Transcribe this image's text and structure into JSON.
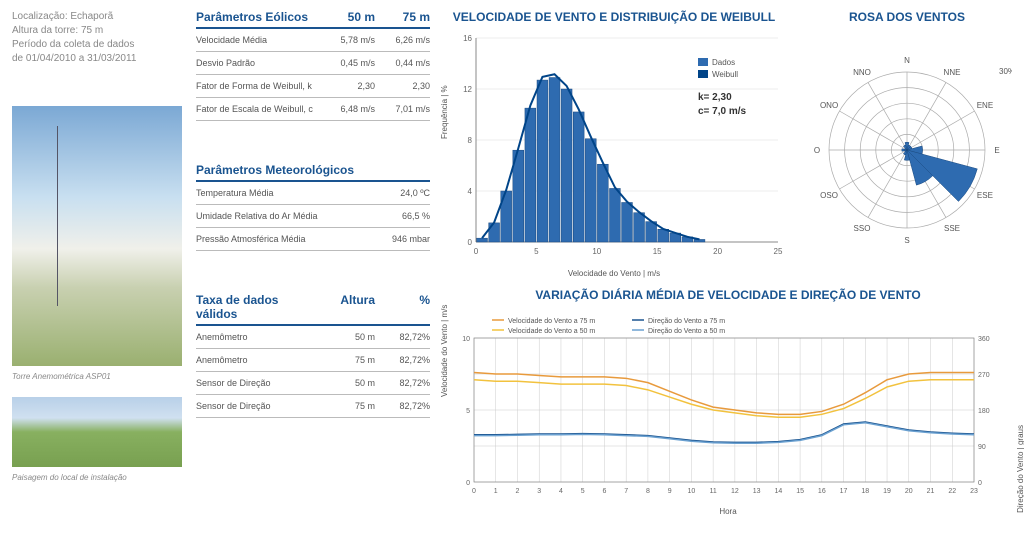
{
  "meta": {
    "loc_label": "Localização:",
    "loc_value": "Echaporã",
    "tower_label": "Altura da torre:",
    "tower_value": "75 m",
    "period_label": "Período da coleta de dados",
    "period_value": "de 01/04/2010 a 31/03/2011"
  },
  "photos": {
    "caption1": "Torre Anemométrica ASP01",
    "caption2": "Paisagem do local de instalação"
  },
  "tables": {
    "eolic": {
      "title": "Parâmetros Eólicos",
      "head1": "50 m",
      "head2": "75 m",
      "rows": [
        {
          "label": "Velocidade Média",
          "v1": "5,78 m/s",
          "v2": "6,26 m/s"
        },
        {
          "label": "Desvio Padrão",
          "v1": "0,45 m/s",
          "v2": "0,44 m/s"
        },
        {
          "label": "Fator de Forma de Weibull, k",
          "v1": "2,30",
          "v2": "2,30"
        },
        {
          "label": "Fator de Escala de Weibull, c",
          "v1": "6,48 m/s",
          "v2": "7,01 m/s"
        }
      ]
    },
    "meteo": {
      "title": "Parâmetros Meteorológicos",
      "rows": [
        {
          "label": "Temperatura Média",
          "v": "24,0 ºC"
        },
        {
          "label": "Umidade Relativa do Ar Média",
          "v": "66,5 %"
        },
        {
          "label": "Pressão Atmosférica Média",
          "v": "946 mbar"
        }
      ]
    },
    "valid": {
      "title": "Taxa de dados válidos",
      "head1": "Altura",
      "head2": "%",
      "rows": [
        {
          "label": "Anemômetro",
          "v1": "50 m",
          "v2": "82,72%"
        },
        {
          "label": "Anemômetro",
          "v1": "75 m",
          "v2": "82,72%"
        },
        {
          "label": "Sensor de Direção",
          "v1": "50 m",
          "v2": "82,72%"
        },
        {
          "label": "Sensor de Direção",
          "v1": "75 m",
          "v2": "82,72%"
        }
      ]
    }
  },
  "weibull": {
    "title": "VELOCIDADE DE VENTO E DISTRIBUIÇÃO DE WEIBULL",
    "xlabel": "Velocidade do Vento | m/s",
    "ylabel": "Frequência | %",
    "legend_data": "Dados",
    "legend_curve": "Weibull",
    "params": {
      "k_label": "k= 2,30",
      "c_label": "c= 7,0 m/s"
    },
    "xticks": [
      0,
      5,
      10,
      15,
      20,
      25
    ],
    "yticks": [
      0,
      4,
      8,
      12,
      16
    ],
    "ylim": 16,
    "xlim": 25,
    "bar_color": "#2e6bb0",
    "curve_color": "#004488",
    "bars": [
      {
        "x": 0.5,
        "y": 0.3
      },
      {
        "x": 1.5,
        "y": 1.5
      },
      {
        "x": 2.5,
        "y": 4.0
      },
      {
        "x": 3.5,
        "y": 7.2
      },
      {
        "x": 4.5,
        "y": 10.5
      },
      {
        "x": 5.5,
        "y": 12.7
      },
      {
        "x": 6.5,
        "y": 12.9
      },
      {
        "x": 7.5,
        "y": 12.0
      },
      {
        "x": 8.5,
        "y": 10.2
      },
      {
        "x": 9.5,
        "y": 8.1
      },
      {
        "x": 10.5,
        "y": 6.1
      },
      {
        "x": 11.5,
        "y": 4.2
      },
      {
        "x": 12.5,
        "y": 3.1
      },
      {
        "x": 13.5,
        "y": 2.3
      },
      {
        "x": 14.5,
        "y": 1.6
      },
      {
        "x": 15.5,
        "y": 1.0
      },
      {
        "x": 16.5,
        "y": 0.7
      },
      {
        "x": 17.5,
        "y": 0.4
      },
      {
        "x": 18.5,
        "y": 0.2
      }
    ]
  },
  "rose": {
    "title": "ROSA DOS VENTOS",
    "max_label": "30%",
    "directions": [
      "N",
      "NNE",
      "ENE",
      "E",
      "ESE",
      "SSE",
      "S",
      "SSO",
      "OSO",
      "O",
      "ONO",
      "NNO"
    ],
    "sector_color": "#2e6bb0",
    "rings": 5,
    "max_pct": 30,
    "sectors": [
      {
        "dir": 0,
        "pct": 3
      },
      {
        "dir": 30,
        "pct": 2
      },
      {
        "dir": 60,
        "pct": 2
      },
      {
        "dir": 90,
        "pct": 6
      },
      {
        "dir": 120,
        "pct": 28
      },
      {
        "dir": 150,
        "pct": 14
      },
      {
        "dir": 180,
        "pct": 4
      },
      {
        "dir": 210,
        "pct": 2
      },
      {
        "dir": 240,
        "pct": 1
      },
      {
        "dir": 270,
        "pct": 2
      },
      {
        "dir": 300,
        "pct": 1
      },
      {
        "dir": 330,
        "pct": 2
      }
    ]
  },
  "daily": {
    "title": "VARIAÇÃO DIÁRIA MÉDIA DE VELOCIDADE E DIREÇÃO DE VENTO",
    "xlabel": "Hora",
    "ylabel_left": "Velocidade do Vento | m/s",
    "ylabel_right": "Direção do Vento | graus",
    "xticks": [
      0,
      1,
      2,
      3,
      4,
      5,
      6,
      7,
      8,
      9,
      10,
      11,
      12,
      13,
      14,
      15,
      16,
      17,
      18,
      19,
      20,
      21,
      22,
      23
    ],
    "xlim": 23,
    "ylim_left": 10,
    "yticks_left": [
      0,
      5,
      10
    ],
    "ylim_right": 360,
    "yticks_right": [
      0,
      90,
      180,
      270,
      360
    ],
    "grid_color": "#cccccc",
    "legend": {
      "v75": "Velocidade do Vento a 75 m",
      "v50": "Velocidade do Vento a 50 m",
      "d75": "Direção do Vento a 75 m",
      "d50": "Direção do Vento a 50 m"
    },
    "colors": {
      "v75": "#e89a3c",
      "v50": "#f2c23e",
      "d75": "#1a5490",
      "d50": "#6aa0d0"
    },
    "series": {
      "v75": [
        7.6,
        7.5,
        7.5,
        7.4,
        7.3,
        7.3,
        7.3,
        7.2,
        6.9,
        6.3,
        5.7,
        5.2,
        5.0,
        4.8,
        4.7,
        4.7,
        4.9,
        5.4,
        6.2,
        7.1,
        7.5,
        7.6,
        7.6,
        7.6
      ],
      "v50": [
        7.1,
        7.0,
        7.0,
        6.9,
        6.8,
        6.8,
        6.8,
        6.7,
        6.4,
        5.9,
        5.4,
        5.0,
        4.8,
        4.6,
        4.5,
        4.5,
        4.7,
        5.1,
        5.8,
        6.6,
        7.0,
        7.1,
        7.1,
        7.1
      ],
      "d75": [
        118,
        118,
        119,
        120,
        120,
        121,
        120,
        118,
        116,
        110,
        104,
        100,
        99,
        99,
        101,
        106,
        118,
        145,
        150,
        140,
        130,
        125,
        122,
        120
      ],
      "d50": [
        116,
        116,
        117,
        118,
        118,
        119,
        118,
        116,
        114,
        108,
        102,
        98,
        97,
        97,
        99,
        104,
        116,
        143,
        148,
        138,
        128,
        123,
        120,
        118
      ]
    }
  }
}
